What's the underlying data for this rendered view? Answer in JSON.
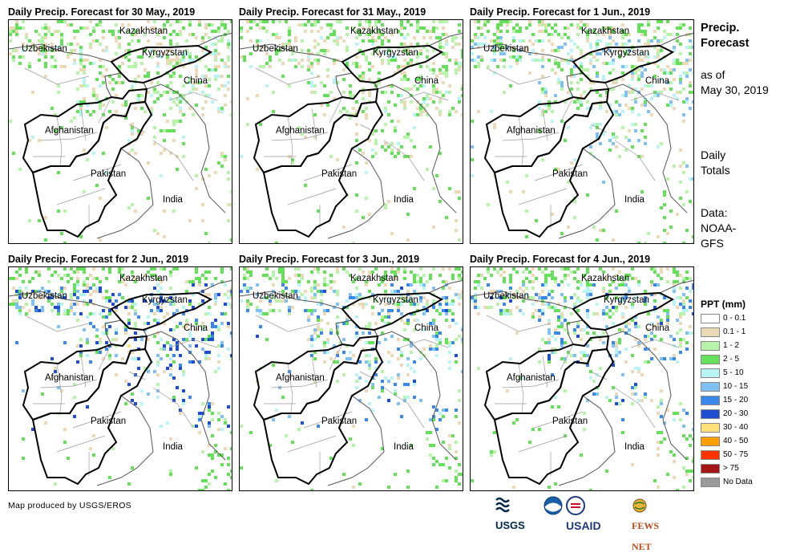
{
  "panels": [
    {
      "title": "Daily Precip. Forecast for 30 May., 2019",
      "intensity": 1
    },
    {
      "title": "Daily Precip. Forecast for 31 May., 2019",
      "intensity": 1
    },
    {
      "title": "Daily Precip. Forecast for 1 Jun., 2019",
      "intensity": 2
    },
    {
      "title": "Daily Precip. Forecast for 2 Jun., 2019",
      "intensity": 4
    },
    {
      "title": "Daily Precip. Forecast for 3 Jun., 2019",
      "intensity": 3
    },
    {
      "title": "Daily Precip. Forecast for 4 Jun., 2019",
      "intensity": 3
    }
  ],
  "map_labels": {
    "kazakhstan": "Kazakhstan",
    "uzbekistan": "Uzbekistan",
    "kyrgyzstan": "Kyrgyzstan",
    "china": "China",
    "afghanistan": "Afghanistan",
    "pakistan": "Pakistan",
    "india": "India"
  },
  "side_info": {
    "title_line1": "Precip.",
    "title_line2": "Forecast",
    "asof_line1": "as of",
    "asof_line2": "May 30, 2019",
    "totals_line1": "Daily",
    "totals_line2": "Totals",
    "data_line1": "Data:",
    "data_line2": "NOAA-",
    "data_line3": "GFS"
  },
  "legend": {
    "title": "PPT (mm)",
    "items": [
      {
        "label": "0 - 0.1",
        "color": "#ffffff"
      },
      {
        "label": "0.1 - 1",
        "color": "#ecd9b8"
      },
      {
        "label": "1 - 2",
        "color": "#b7f3a8"
      },
      {
        "label": "2 - 5",
        "color": "#66e05a"
      },
      {
        "label": "5 - 10",
        "color": "#b9f4f4"
      },
      {
        "label": "10 - 15",
        "color": "#7fc1f2"
      },
      {
        "label": "15 - 20",
        "color": "#3a88e8"
      },
      {
        "label": "20 - 30",
        "color": "#1f4fd0"
      },
      {
        "label": "30 - 40",
        "color": "#ffe07a"
      },
      {
        "label": "40 - 50",
        "color": "#ff9f00"
      },
      {
        "label": "50 - 75",
        "color": "#ff3300"
      },
      {
        "label": "> 75",
        "color": "#a51616"
      },
      {
        "label": "No Data",
        "color": "#9a9a9a"
      }
    ]
  },
  "credit": "Map produced by USGS/EROS",
  "logos": {
    "usgs": "USGS",
    "usaid": "USAID",
    "fewsnet": "FEWS NET"
  }
}
